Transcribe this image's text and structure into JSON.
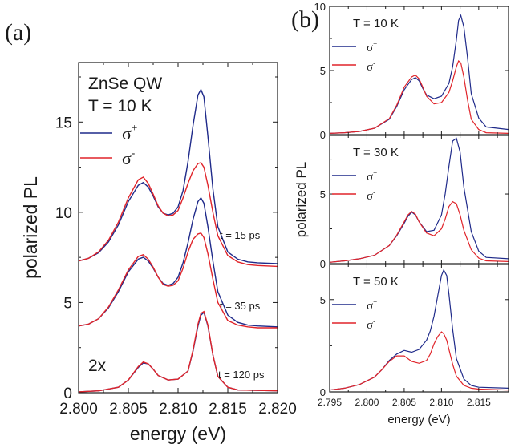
{
  "figure": {
    "panel_a_label": "(a)",
    "panel_b_label": "(b)"
  },
  "colors": {
    "sigma_plus": "#1f2a8a",
    "sigma_minus": "#e0242a",
    "axis": "#1a1a1a"
  },
  "chart_data": [
    {
      "type": "line",
      "panel": "(a)",
      "xlabel": "energy (eV)",
      "ylabel": "polarized PL",
      "xlim": [
        2.8,
        2.82
      ],
      "ylim": [
        0,
        18.3
      ],
      "xticks": [
        2.8,
        2.805,
        2.81,
        2.815,
        2.82
      ],
      "xtick_labels": [
        "2.800",
        "2.805",
        "2.810",
        "2.815",
        "2.820"
      ],
      "yticks": [
        0,
        5,
        10,
        15
      ],
      "ytick_labels": [
        "0",
        "5",
        "10",
        "15"
      ],
      "annotations": [
        "ZnSe QW",
        "T = 10 K",
        "t = 15 ps",
        "t = 35 ps",
        "t = 120 ps",
        "2x"
      ],
      "legend": {
        "position": "top-left",
        "entries": [
          "σ+",
          "σ-"
        ]
      },
      "series": [
        {
          "name": "σ+",
          "group": "t = 15 ps",
          "x": [
            2.8,
            2.801,
            2.802,
            2.803,
            2.804,
            2.805,
            2.806,
            2.8065,
            2.807,
            2.8075,
            2.808,
            2.8085,
            2.809,
            2.8095,
            2.81,
            2.8105,
            2.811,
            2.8115,
            2.812,
            2.8123,
            2.8126,
            2.813,
            2.8135,
            2.814,
            2.815,
            2.816,
            2.817,
            2.818,
            2.82
          ],
          "values": [
            7.3,
            7.45,
            7.75,
            8.35,
            9.3,
            10.6,
            11.5,
            11.65,
            11.4,
            10.9,
            10.3,
            9.95,
            9.85,
            9.95,
            10.3,
            11.2,
            12.8,
            14.8,
            16.5,
            16.8,
            16.4,
            14.2,
            11.3,
            9.2,
            7.8,
            7.4,
            7.25,
            7.2,
            7.15
          ]
        },
        {
          "name": "σ-",
          "group": "t = 15 ps",
          "x": [
            2.8,
            2.801,
            2.802,
            2.803,
            2.804,
            2.805,
            2.806,
            2.8065,
            2.807,
            2.8075,
            2.808,
            2.8085,
            2.809,
            2.8095,
            2.81,
            2.8105,
            2.811,
            2.8115,
            2.812,
            2.8123,
            2.8126,
            2.813,
            2.8135,
            2.814,
            2.815,
            2.816,
            2.817,
            2.818,
            2.82
          ],
          "values": [
            7.3,
            7.45,
            7.8,
            8.45,
            9.45,
            10.8,
            11.8,
            11.95,
            11.6,
            11.0,
            10.35,
            9.95,
            9.8,
            9.85,
            10.1,
            10.8,
            11.6,
            12.3,
            12.7,
            12.75,
            12.5,
            11.5,
            10.0,
            8.7,
            7.6,
            7.25,
            7.1,
            7.05,
            7.0
          ]
        },
        {
          "name": "σ+",
          "group": "t = 35 ps",
          "x": [
            2.8,
            2.801,
            2.802,
            2.803,
            2.804,
            2.805,
            2.806,
            2.8065,
            2.807,
            2.8075,
            2.808,
            2.8085,
            2.809,
            2.8095,
            2.81,
            2.8105,
            2.811,
            2.8115,
            2.812,
            2.8123,
            2.8126,
            2.813,
            2.8135,
            2.814,
            2.815,
            2.816,
            2.817,
            2.818,
            2.82
          ],
          "values": [
            3.7,
            3.8,
            4.1,
            4.7,
            5.6,
            6.7,
            7.4,
            7.5,
            7.3,
            6.9,
            6.4,
            6.05,
            5.95,
            6.05,
            6.4,
            7.2,
            8.3,
            9.6,
            10.6,
            10.8,
            10.5,
            9.2,
            7.3,
            5.6,
            4.3,
            3.9,
            3.75,
            3.7,
            3.65
          ]
        },
        {
          "name": "σ-",
          "group": "t = 35 ps",
          "x": [
            2.8,
            2.801,
            2.802,
            2.803,
            2.804,
            2.805,
            2.806,
            2.8065,
            2.807,
            2.8075,
            2.808,
            2.8085,
            2.809,
            2.8095,
            2.81,
            2.8105,
            2.811,
            2.8115,
            2.812,
            2.8123,
            2.8126,
            2.813,
            2.8135,
            2.814,
            2.815,
            2.816,
            2.817,
            2.818,
            2.82
          ],
          "values": [
            3.7,
            3.8,
            4.1,
            4.75,
            5.7,
            6.8,
            7.55,
            7.65,
            7.4,
            6.95,
            6.4,
            6.0,
            5.9,
            5.95,
            6.2,
            6.9,
            7.8,
            8.5,
            8.8,
            8.85,
            8.6,
            7.7,
            6.3,
            5.0,
            4.0,
            3.75,
            3.65,
            3.6,
            3.6
          ]
        },
        {
          "name": "σ+",
          "group": "t = 120 ps",
          "x": [
            2.8,
            2.802,
            2.804,
            2.805,
            2.806,
            2.8065,
            2.807,
            2.8075,
            2.808,
            2.809,
            2.81,
            2.811,
            2.8115,
            2.812,
            2.8123,
            2.8126,
            2.813,
            2.8135,
            2.814,
            2.815,
            2.816,
            2.82
          ],
          "values": [
            0.05,
            0.1,
            0.3,
            0.7,
            1.4,
            1.65,
            1.6,
            1.3,
            0.95,
            0.7,
            0.75,
            1.2,
            2.3,
            3.7,
            4.3,
            4.45,
            3.7,
            2.1,
            0.9,
            0.3,
            0.15,
            0.1
          ]
        },
        {
          "name": "σ-",
          "group": "t = 120 ps",
          "x": [
            2.8,
            2.802,
            2.804,
            2.805,
            2.806,
            2.8065,
            2.807,
            2.8075,
            2.808,
            2.809,
            2.81,
            2.811,
            2.8115,
            2.812,
            2.8123,
            2.8126,
            2.813,
            2.8135,
            2.814,
            2.815,
            2.816,
            2.82
          ],
          "values": [
            0.05,
            0.1,
            0.3,
            0.7,
            1.45,
            1.7,
            1.6,
            1.3,
            0.95,
            0.7,
            0.75,
            1.2,
            2.35,
            3.8,
            4.4,
            4.5,
            3.75,
            2.1,
            0.9,
            0.3,
            0.15,
            0.1
          ]
        }
      ]
    },
    {
      "type": "line",
      "panel": "(b)",
      "annotation": "T = 10 K",
      "xlim": [
        2.795,
        2.819
      ],
      "ylim": [
        0,
        10
      ],
      "yticks": [
        0,
        5,
        10
      ],
      "ytick_labels": [
        "0",
        "5",
        "10"
      ],
      "legend": {
        "position": "top-left",
        "entries": [
          "σ+",
          "σ-"
        ]
      },
      "series": [
        {
          "name": "σ+",
          "x": [
            2.795,
            2.797,
            2.799,
            2.801,
            2.803,
            2.804,
            2.805,
            2.806,
            2.8065,
            2.807,
            2.8075,
            2.808,
            2.809,
            2.81,
            2.811,
            2.8115,
            2.812,
            2.8123,
            2.8126,
            2.813,
            2.8135,
            2.814,
            2.815,
            2.816,
            2.819
          ],
          "values": [
            0.1,
            0.15,
            0.25,
            0.5,
            1.2,
            2.2,
            3.5,
            4.3,
            4.45,
            4.2,
            3.6,
            3.1,
            2.8,
            3.0,
            4.0,
            5.3,
            7.4,
            8.9,
            9.3,
            8.4,
            6.0,
            3.2,
            1.3,
            0.6,
            0.4
          ]
        },
        {
          "name": "σ-",
          "x": [
            2.795,
            2.797,
            2.799,
            2.801,
            2.803,
            2.804,
            2.805,
            2.806,
            2.8065,
            2.807,
            2.8075,
            2.808,
            2.809,
            2.81,
            2.811,
            2.8115,
            2.812,
            2.8123,
            2.8126,
            2.813,
            2.8135,
            2.814,
            2.815,
            2.816,
            2.819
          ],
          "values": [
            0.1,
            0.15,
            0.25,
            0.5,
            1.25,
            2.3,
            3.7,
            4.5,
            4.65,
            4.35,
            3.7,
            3.0,
            2.4,
            2.5,
            3.3,
            4.2,
            5.3,
            5.75,
            5.6,
            4.5,
            2.7,
            1.2,
            0.4,
            0.15,
            0.1
          ]
        }
      ]
    },
    {
      "type": "line",
      "panel": "(b)",
      "annotation": "T = 30 K",
      "ylabel": "polarized PL",
      "xlim": [
        2.795,
        2.819
      ],
      "ylim": [
        0,
        9.2
      ],
      "yticks": [
        0,
        5
      ],
      "ytick_labels": [
        "0",
        "5"
      ],
      "legend": {
        "position": "top-left",
        "entries": [
          "σ+",
          "σ-"
        ]
      },
      "series": [
        {
          "name": "σ+",
          "x": [
            2.795,
            2.797,
            2.799,
            2.801,
            2.803,
            2.804,
            2.805,
            2.8055,
            2.806,
            2.8065,
            2.807,
            2.808,
            2.809,
            2.81,
            2.8105,
            2.811,
            2.8115,
            2.812,
            2.8125,
            2.813,
            2.814,
            2.815,
            2.816,
            2.819
          ],
          "values": [
            0.1,
            0.2,
            0.35,
            0.6,
            1.3,
            2.0,
            2.9,
            3.4,
            3.7,
            3.5,
            3.0,
            2.3,
            2.4,
            3.5,
            5.0,
            7.0,
            8.8,
            9.0,
            8.0,
            5.5,
            2.3,
            0.9,
            0.45,
            0.35
          ]
        },
        {
          "name": "σ-",
          "x": [
            2.795,
            2.797,
            2.799,
            2.801,
            2.803,
            2.804,
            2.805,
            2.8055,
            2.806,
            2.8065,
            2.807,
            2.808,
            2.809,
            2.81,
            2.8105,
            2.811,
            2.8115,
            2.812,
            2.8125,
            2.813,
            2.814,
            2.815,
            2.816,
            2.819
          ],
          "values": [
            0.1,
            0.2,
            0.35,
            0.6,
            1.3,
            2.05,
            3.0,
            3.5,
            3.75,
            3.55,
            3.0,
            2.2,
            2.0,
            2.5,
            3.2,
            4.1,
            4.45,
            4.3,
            3.5,
            2.4,
            1.0,
            0.4,
            0.2,
            0.15
          ]
        }
      ]
    },
    {
      "type": "line",
      "panel": "(b)",
      "annotation": "T = 50 K",
      "xlabel": "energy (eV)",
      "xlim": [
        2.795,
        2.819
      ],
      "ylim": [
        0,
        6.9
      ],
      "xticks": [
        2.795,
        2.8,
        2.805,
        2.81,
        2.815
      ],
      "xtick_labels": [
        "2.795",
        "2.800",
        "2.805",
        "2.810",
        "2.815"
      ],
      "yticks": [
        0,
        5
      ],
      "ytick_labels": [
        "0",
        "5"
      ],
      "legend": {
        "position": "top-left",
        "entries": [
          "σ+",
          "σ-"
        ]
      },
      "series": [
        {
          "name": "σ+",
          "x": [
            2.795,
            2.797,
            2.799,
            2.801,
            2.802,
            2.803,
            2.804,
            2.805,
            2.806,
            2.807,
            2.808,
            2.8085,
            2.809,
            2.8095,
            2.81,
            2.8103,
            2.8107,
            2.811,
            2.8115,
            2.812,
            2.813,
            2.814,
            2.815,
            2.819
          ],
          "values": [
            0.1,
            0.2,
            0.4,
            0.8,
            1.2,
            1.7,
            2.05,
            2.25,
            2.15,
            2.3,
            2.8,
            3.3,
            4.1,
            5.2,
            6.3,
            6.6,
            6.3,
            5.3,
            3.4,
            1.8,
            0.7,
            0.35,
            0.25,
            0.2
          ]
        },
        {
          "name": "σ-",
          "x": [
            2.795,
            2.797,
            2.799,
            2.801,
            2.802,
            2.803,
            2.804,
            2.805,
            2.806,
            2.807,
            2.808,
            2.8085,
            2.809,
            2.8095,
            2.81,
            2.8103,
            2.8107,
            2.811,
            2.8115,
            2.812,
            2.813,
            2.814,
            2.815,
            2.819
          ],
          "values": [
            0.1,
            0.2,
            0.4,
            0.8,
            1.2,
            1.65,
            1.95,
            1.95,
            1.65,
            1.55,
            1.7,
            2.05,
            2.6,
            3.0,
            3.25,
            3.15,
            2.8,
            2.3,
            1.5,
            0.85,
            0.35,
            0.2,
            0.15,
            0.1
          ]
        }
      ]
    }
  ]
}
